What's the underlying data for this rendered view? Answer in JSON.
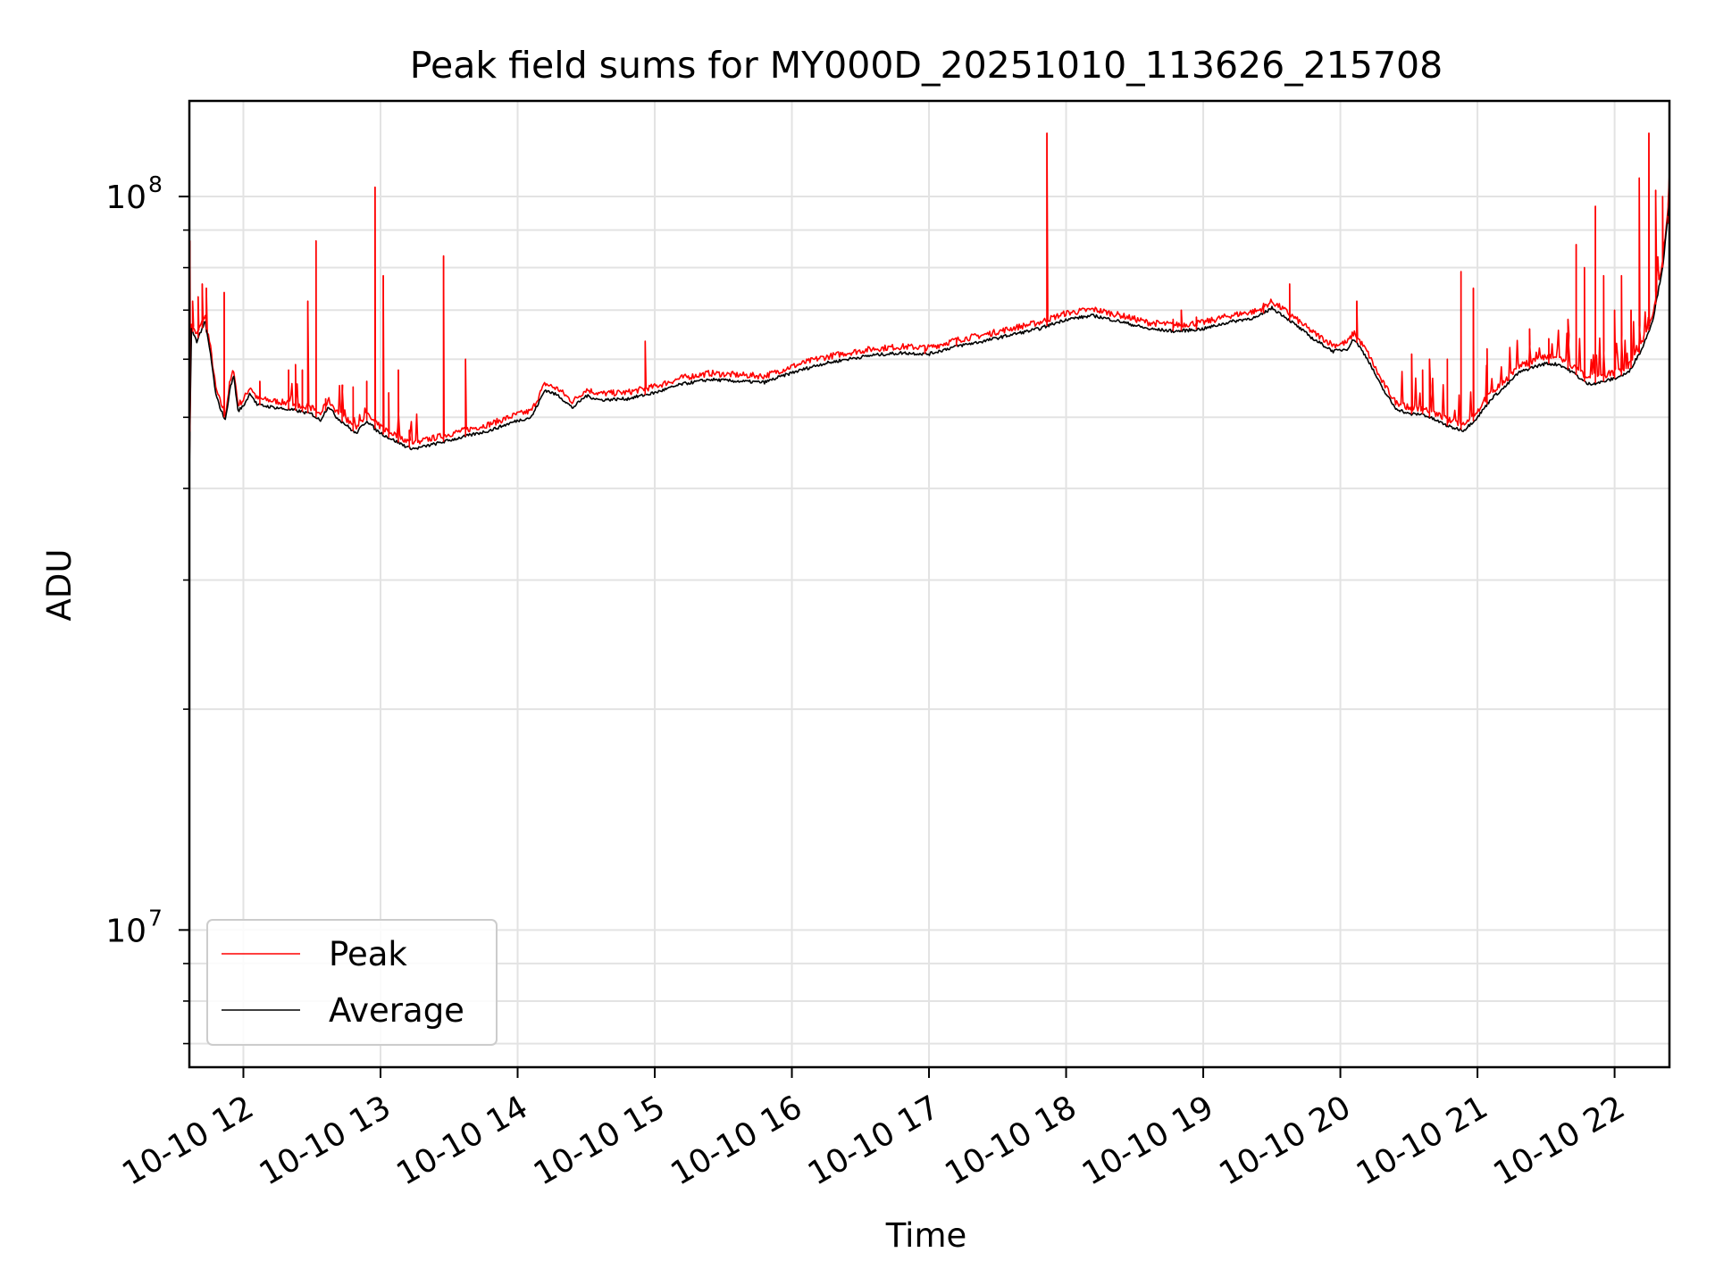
{
  "chart_data": {
    "type": "line",
    "title": "Peak field sums for MY000D_20251010_113626_215708",
    "xlabel": "Time",
    "ylabel": "ADU",
    "yscale": "log",
    "xlim_hours": [
      11.606,
      22.4
    ],
    "ylim": [
      6500000,
      135000000
    ],
    "grid": true,
    "legend_position": "lower-left",
    "x_tick_labels": [
      "10-10 12",
      "10-10 13",
      "10-10 14",
      "10-10 15",
      "10-10 16",
      "10-10 17",
      "10-10 18",
      "10-10 19",
      "10-10 20",
      "10-10 21",
      "10-10 22"
    ],
    "x_tick_hours": [
      12,
      13,
      14,
      15,
      16,
      17,
      18,
      19,
      20,
      21,
      22
    ],
    "y_major_ticks": [
      {
        "value": 10000000,
        "base": "10",
        "exp": "7"
      },
      {
        "value": 100000000,
        "base": "10",
        "exp": "8"
      }
    ],
    "y_minor_ticks": [
      7000000,
      8000000,
      9000000,
      20000000,
      30000000,
      40000000,
      50000000,
      60000000,
      70000000,
      80000000,
      90000000
    ],
    "series": [
      {
        "name": "Average",
        "color": "#000000",
        "points": [
          [
            11.606,
            42000000
          ],
          [
            11.62,
            66000000
          ],
          [
            11.66,
            63500000
          ],
          [
            11.72,
            67500000
          ],
          [
            11.76,
            61000000
          ],
          [
            11.8,
            53500000
          ],
          [
            11.84,
            51000000
          ],
          [
            11.87,
            49500000
          ],
          [
            11.9,
            54500000
          ],
          [
            11.93,
            57000000
          ],
          [
            11.96,
            51000000
          ],
          [
            12.0,
            51800000
          ],
          [
            12.05,
            54000000
          ],
          [
            12.1,
            52000000
          ],
          [
            12.25,
            51500000
          ],
          [
            12.4,
            51000000
          ],
          [
            12.5,
            50500000
          ],
          [
            12.56,
            49500000
          ],
          [
            12.62,
            51800000
          ],
          [
            12.68,
            50000000
          ],
          [
            12.75,
            48800000
          ],
          [
            12.82,
            47500000
          ],
          [
            12.9,
            49500000
          ],
          [
            12.97,
            48000000
          ],
          [
            13.05,
            47000000
          ],
          [
            13.12,
            46300000
          ],
          [
            13.2,
            45500000
          ],
          [
            13.25,
            45300000
          ],
          [
            13.4,
            46000000
          ],
          [
            13.6,
            47000000
          ],
          [
            13.8,
            48000000
          ],
          [
            14.0,
            49500000
          ],
          [
            14.1,
            50000000
          ],
          [
            14.2,
            54500000
          ],
          [
            14.3,
            53500000
          ],
          [
            14.4,
            51500000
          ],
          [
            14.5,
            53500000
          ],
          [
            14.6,
            52800000
          ],
          [
            14.8,
            53000000
          ],
          [
            15.0,
            54000000
          ],
          [
            15.2,
            55500000
          ],
          [
            15.4,
            56300000
          ],
          [
            15.6,
            56000000
          ],
          [
            15.8,
            55800000
          ],
          [
            16.0,
            57500000
          ],
          [
            16.2,
            59000000
          ],
          [
            16.4,
            60000000
          ],
          [
            16.6,
            60800000
          ],
          [
            16.8,
            61200000
          ],
          [
            17.0,
            61000000
          ],
          [
            17.2,
            62500000
          ],
          [
            17.4,
            63500000
          ],
          [
            17.6,
            64800000
          ],
          [
            17.8,
            66000000
          ],
          [
            18.0,
            68000000
          ],
          [
            18.2,
            68800000
          ],
          [
            18.4,
            67500000
          ],
          [
            18.6,
            66000000
          ],
          [
            18.8,
            65500000
          ],
          [
            19.0,
            66000000
          ],
          [
            19.2,
            67500000
          ],
          [
            19.4,
            68500000
          ],
          [
            19.5,
            70500000
          ],
          [
            19.6,
            68500000
          ],
          [
            19.8,
            64000000
          ],
          [
            19.95,
            61500000
          ],
          [
            20.05,
            62000000
          ],
          [
            20.1,
            64000000
          ],
          [
            20.2,
            60000000
          ],
          [
            20.3,
            55000000
          ],
          [
            20.4,
            51500000
          ],
          [
            20.5,
            50500000
          ],
          [
            20.6,
            50500000
          ],
          [
            20.7,
            49500000
          ],
          [
            20.8,
            48500000
          ],
          [
            20.9,
            48000000
          ],
          [
            21.0,
            50000000
          ],
          [
            21.1,
            53000000
          ],
          [
            21.2,
            55000000
          ],
          [
            21.3,
            57500000
          ],
          [
            21.4,
            58500000
          ],
          [
            21.5,
            59200000
          ],
          [
            21.6,
            59000000
          ],
          [
            21.7,
            57500000
          ],
          [
            21.8,
            55500000
          ],
          [
            21.9,
            55800000
          ],
          [
            22.0,
            56500000
          ],
          [
            22.1,
            57500000
          ],
          [
            22.2,
            62000000
          ],
          [
            22.28,
            68000000
          ],
          [
            22.35,
            80000000
          ],
          [
            22.4,
            98000000
          ]
        ]
      },
      {
        "name": "Peak",
        "color": "#ff0000",
        "spikes": [
          [
            11.61,
            87000000
          ],
          [
            11.63,
            72000000
          ],
          [
            11.67,
            73000000
          ],
          [
            11.7,
            76000000
          ],
          [
            11.73,
            75000000
          ],
          [
            11.86,
            74000000
          ],
          [
            12.12,
            56000000
          ],
          [
            12.33,
            58000000
          ],
          [
            12.38,
            59000000
          ],
          [
            12.43,
            58000000
          ],
          [
            12.47,
            72000000
          ],
          [
            12.53,
            87000000
          ],
          [
            12.6,
            53000000
          ],
          [
            12.72,
            52000000
          ],
          [
            12.8,
            55000000
          ],
          [
            12.9,
            56000000
          ],
          [
            12.96,
            103000000
          ],
          [
            13.02,
            78000000
          ],
          [
            13.06,
            54000000
          ],
          [
            13.13,
            58000000
          ],
          [
            13.21,
            48000000
          ],
          [
            13.46,
            83000000
          ],
          [
            13.62,
            60000000
          ],
          [
            14.93,
            63500000
          ],
          [
            16.97,
            62500000
          ],
          [
            17.2,
            63000000
          ],
          [
            17.86,
            122000000
          ],
          [
            18.78,
            68000000
          ],
          [
            18.84,
            70000000
          ],
          [
            18.95,
            68500000
          ],
          [
            19.44,
            71500000
          ],
          [
            19.63,
            76000000
          ],
          [
            20.12,
            72000000
          ],
          [
            20.52,
            61000000
          ],
          [
            20.6,
            58000000
          ],
          [
            20.65,
            60000000
          ],
          [
            20.78,
            60000000
          ],
          [
            20.88,
            79000000
          ],
          [
            20.97,
            75000000
          ],
          [
            21.07,
            62000000
          ],
          [
            21.38,
            66000000
          ],
          [
            21.52,
            64000000
          ],
          [
            21.66,
            68000000
          ],
          [
            21.72,
            86000000
          ],
          [
            21.78,
            80000000
          ],
          [
            21.86,
            97000000
          ],
          [
            21.92,
            78000000
          ],
          [
            22.0,
            70000000
          ],
          [
            22.05,
            78000000
          ],
          [
            22.12,
            70000000
          ],
          [
            22.18,
            106000000
          ],
          [
            22.25,
            122000000
          ],
          [
            22.3,
            102000000
          ],
          [
            22.35,
            100000000
          ],
          [
            22.39,
            92000000
          ]
        ]
      }
    ]
  }
}
